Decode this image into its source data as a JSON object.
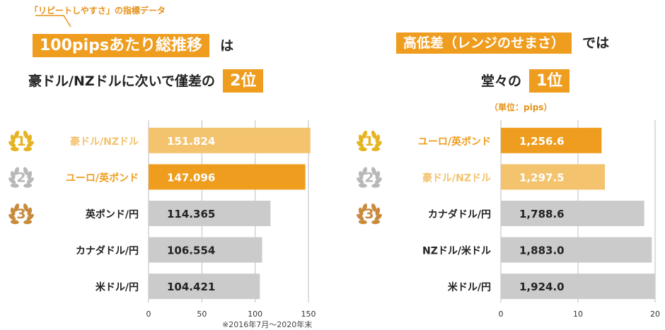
{
  "left": {
    "callout": "「リピートしやすさ」の指標データ",
    "heading1_highlight": "100pipsあたり総推移",
    "heading1_suffix": "は",
    "heading2_prefix": "豪ドル/NZドルに次いで僅差の",
    "heading2_highlight": "2位",
    "note": "※2016年7月〜2020年末",
    "rank_labels": [
      "1",
      "2",
      "3"
    ]
  },
  "right": {
    "heading1_highlight": "高低差（レンジのせまさ）",
    "heading1_suffix": "では",
    "heading2_prefix": "堂々の",
    "heading2_highlight": "1位",
    "unit": "（単位：pips）",
    "rank_labels": [
      "1",
      "2",
      "3"
    ]
  },
  "colors": {
    "accent": "#ef9d1f",
    "accent_light": "#f4c36d",
    "gray_bar": "#cbcbcb",
    "gold": "#e6b422",
    "silver": "#b8b8b8",
    "bronze": "#c98a3c",
    "label_highlight": "#ef9d1f"
  },
  "chart_data": [
    {
      "type": "bar",
      "orientation": "horizontal",
      "categories": [
        "豪ドル/NZドル",
        "ユーロ/英ポンド",
        "英ポンド/円",
        "カナダドル/円",
        "米ドル/円"
      ],
      "values": [
        151.824,
        147.096,
        114.365,
        106.554,
        104.421
      ],
      "value_labels": [
        "151.824",
        "147.096",
        "114.365",
        "106.554",
        "104.421"
      ],
      "xlim": [
        0,
        150
      ],
      "xticks": [
        "0",
        "50",
        "100",
        "150"
      ],
      "grid": true
    },
    {
      "type": "bar",
      "orientation": "horizontal",
      "categories": [
        "ユーロ/英ポンド",
        "豪ドル/NZドル",
        "カナダドル/円",
        "NZドル/米ドル",
        "米ドル/円"
      ],
      "values": [
        1256.6,
        1297.5,
        1788.6,
        1883.0,
        1924.0
      ],
      "value_labels": [
        "1,256.6",
        "1,297.5",
        "1,788.6",
        "1,883.0",
        "1,924.0"
      ],
      "xticks": [
        "0",
        "10",
        "20"
      ],
      "grid": true
    }
  ]
}
